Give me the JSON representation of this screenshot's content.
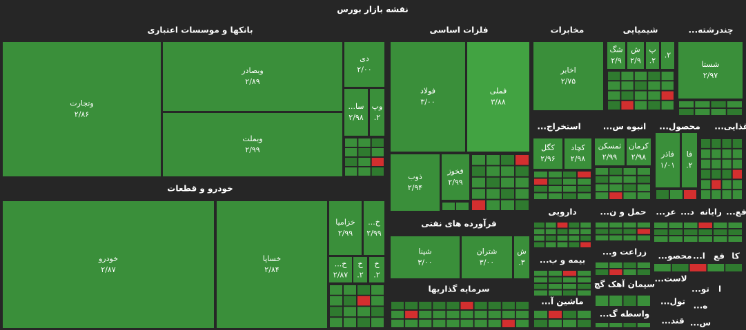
{
  "title": "نقشه بازار بورس",
  "sectors": [
    {
      "title": "بانکها و موسسات اعتباری",
      "tiles": [
        {
          "name": "وتجارت",
          "value": "۲/۸۶"
        },
        {
          "name": "وبصادر",
          "value": "۲/۸۹"
        },
        {
          "name": "وبملت",
          "value": "۲/۹۹"
        },
        {
          "name": "دی",
          "value": "۲/۰۰"
        },
        {
          "name": "سا...",
          "value": "۲/۹۸"
        },
        {
          "name": "وپ",
          "value": "۲."
        }
      ]
    },
    {
      "title": "خودرو و قطعات",
      "tiles": [
        {
          "name": "خودرو",
          "value": "۲/۸۷"
        },
        {
          "name": "خساپا",
          "value": "۲/۸۴"
        },
        {
          "name": "خزامیا",
          "value": "۲/۹۹"
        },
        {
          "name": "خ...",
          "value": "۲/۹۹"
        },
        {
          "name": "خ...",
          "value": "۲/۸۷"
        },
        {
          "name": "خ",
          "value": "۲."
        },
        {
          "name": "خ",
          "value": "۲."
        }
      ]
    },
    {
      "title": "فلزات اساسی",
      "tiles": [
        {
          "name": "فولاد",
          "value": "۳/۰۰"
        },
        {
          "name": "فملی",
          "value": "۳/۸۸"
        },
        {
          "name": "ذوب",
          "value": "۲/۹۴"
        },
        {
          "name": "فخوز",
          "value": "۲/۹۹"
        }
      ]
    },
    {
      "title": "فرآورده های نفتی",
      "tiles": [
        {
          "name": "شپنا",
          "value": "۳/۰۰"
        },
        {
          "name": "شتران",
          "value": "۳/۰۰"
        },
        {
          "name": "ش",
          "value": "۳."
        }
      ]
    },
    {
      "title": "سرمایه گذاریها"
    },
    {
      "title": "مخابرات",
      "tiles": [
        {
          "name": "اخابر",
          "value": "۲/۷۵"
        }
      ]
    },
    {
      "title": "شیمیایی",
      "tiles": [
        {
          "name": "شگ",
          "value": "۲/۹"
        },
        {
          "name": "ش",
          "value": "۲/۹"
        },
        {
          "name": "پ",
          "value": "۲."
        },
        {
          "name": "",
          "value": "۲."
        }
      ]
    },
    {
      "title": "چندرشته...",
      "tiles": [
        {
          "name": "شستا",
          "value": "۲/۹۷"
        }
      ]
    },
    {
      "title": "استخراج...",
      "tiles": [
        {
          "name": "کگل",
          "value": "۲/۹۶"
        },
        {
          "name": "کچاد",
          "value": "۲/۹۸"
        }
      ]
    },
    {
      "title": "انبوه س...",
      "tiles": [
        {
          "name": "ثمسکن",
          "value": "۲/۹۹"
        },
        {
          "name": "کرمان",
          "value": "۲/۹۸"
        }
      ]
    },
    {
      "title": "محصول...",
      "tiles": [
        {
          "name": "فاذر",
          "value": "۱/۰۱"
        },
        {
          "name": "فا",
          "value": "۲."
        }
      ]
    },
    {
      "title": "غذایی..."
    },
    {
      "title": "دارویی"
    },
    {
      "title": "حمل و ن..."
    },
    {
      "title": "عر..."
    },
    {
      "title": "د..."
    },
    {
      "title": "رایانه"
    },
    {
      "title": "فع..."
    },
    {
      "title": "بیمه و ب..."
    },
    {
      "title": "زراعت و..."
    },
    {
      "title": "محصو..."
    },
    {
      "title": "ا..."
    },
    {
      "title": "فع"
    },
    {
      "title": "کا"
    },
    {
      "title": "سیمان آهک گچ"
    },
    {
      "title": "لاست..."
    },
    {
      "title": "تو..."
    },
    {
      "title": "ا"
    },
    {
      "title": "ماشین آ..."
    },
    {
      "title": "تول..."
    },
    {
      "title": "ه..."
    },
    {
      "title": "واسطه گ..."
    },
    {
      "title": "قند..."
    },
    {
      "title": "س..."
    }
  ]
}
